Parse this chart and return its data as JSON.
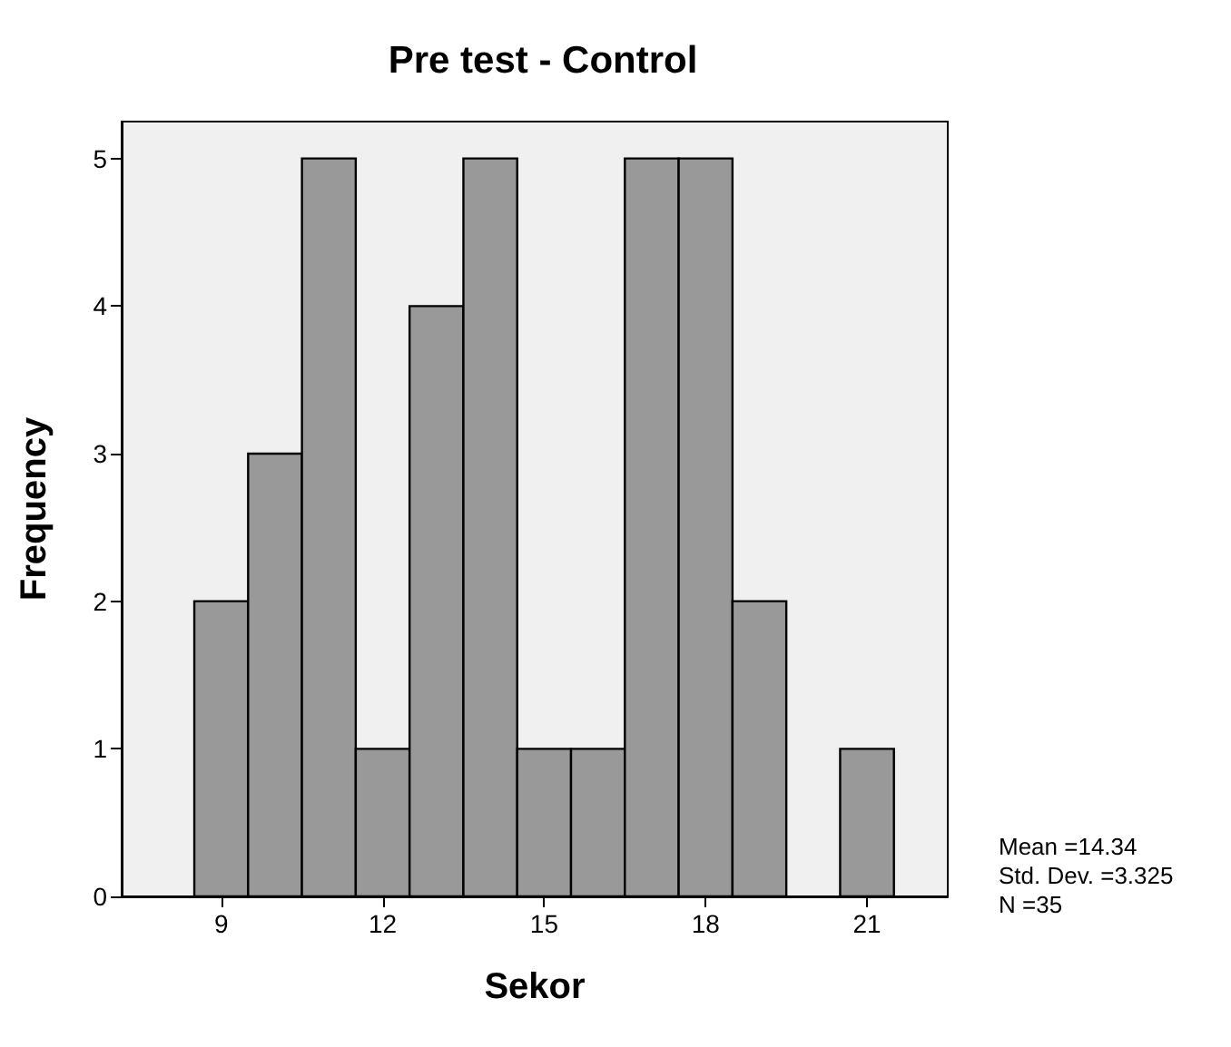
{
  "chart_data": {
    "type": "histogram",
    "title": "Pre test - Control",
    "xlabel": "Sekor",
    "ylabel": "Frequency",
    "bins": [
      8.5,
      9.5,
      10.5,
      11.5,
      12.5,
      13.5,
      14.5,
      15.5,
      16.5,
      17.5,
      18.5,
      19.5,
      20.5,
      21.5
    ],
    "values": [
      2,
      3,
      5,
      1,
      4,
      5,
      1,
      1,
      5,
      5,
      2,
      0,
      1
    ],
    "color": "#999999",
    "xlim": [
      7.15,
      22.5
    ],
    "xticks": [
      9,
      12,
      15,
      18,
      21
    ],
    "ylim": [
      0,
      5.25
    ],
    "yticks": [
      0,
      1,
      2,
      3,
      4,
      5
    ],
    "grid": false,
    "annotations": [
      "Mean =14.34",
      "Std. Dev. =3.325",
      "N =35"
    ]
  }
}
